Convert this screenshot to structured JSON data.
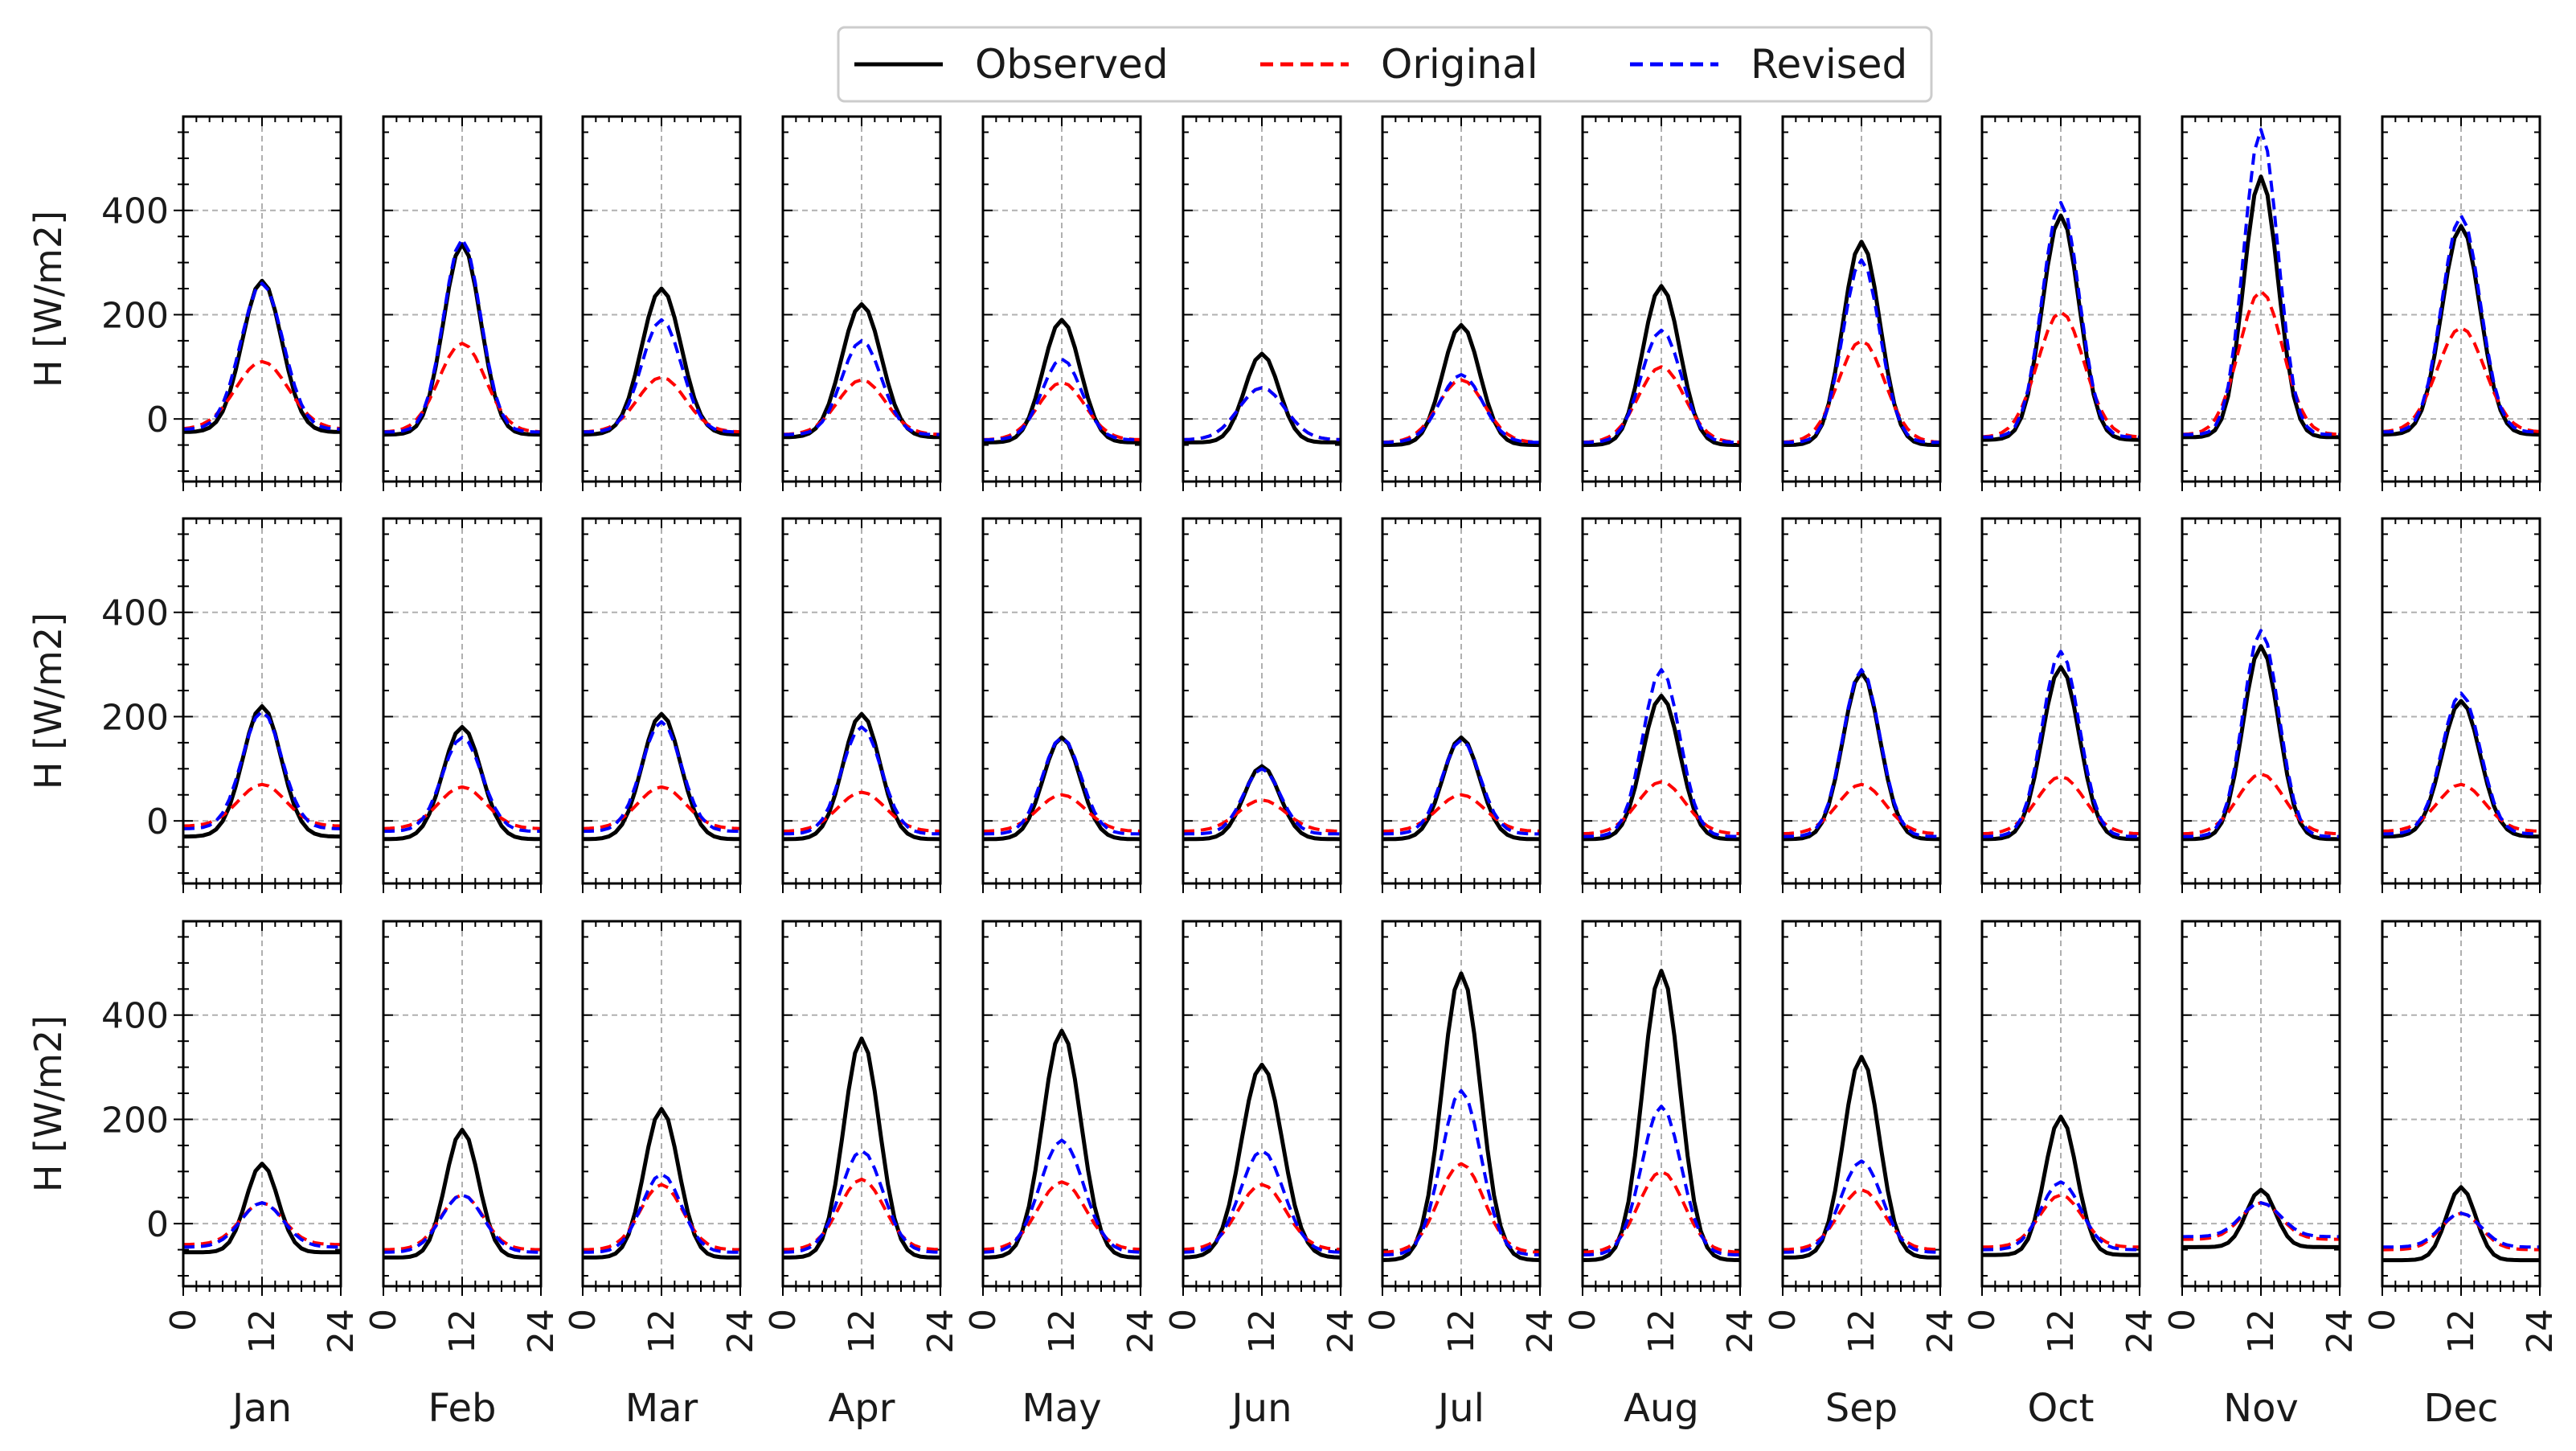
{
  "chart_data": {
    "type": "line",
    "layout": "3 rows x 12 columns of small-multiple line plots",
    "ylabel": "H [W/m2]",
    "xlabel": "",
    "xlim": [
      0,
      24
    ],
    "ylim": [
      -120,
      580
    ],
    "x_ticks": [
      0,
      12,
      24
    ],
    "x_tick_labels": [
      "0",
      "12",
      "24"
    ],
    "y_ticks": [
      0,
      200,
      400
    ],
    "y_tick_labels": [
      "0",
      "200",
      "400"
    ],
    "grid": true,
    "months": [
      "Jan",
      "Feb",
      "Mar",
      "Apr",
      "May",
      "Jun",
      "Jul",
      "Aug",
      "Sep",
      "Oct",
      "Nov",
      "Dec"
    ],
    "series_meta": [
      {
        "key": "obs",
        "name": "Observed",
        "color": "#000000",
        "style": "solid"
      },
      {
        "key": "orig",
        "name": "Original",
        "color": "#ff0000",
        "style": "dashed"
      },
      {
        "key": "rev",
        "name": "Revised",
        "color": "#0000ff",
        "style": "dashed"
      }
    ],
    "legend": {
      "placement": "top-center",
      "entries": [
        "Observed",
        "Original",
        "Revised"
      ]
    },
    "panel_params": [
      [
        {
          "obs": [
            -25,
            265,
            3.0
          ],
          "orig": [
            -20,
            110,
            4.0
          ],
          "rev": [
            -20,
            260,
            3.2
          ]
        },
        {
          "obs": [
            -30,
            335,
            2.8
          ],
          "orig": [
            -25,
            145,
            3.5
          ],
          "rev": [
            -25,
            345,
            2.8
          ]
        },
        {
          "obs": [
            -30,
            250,
            3.0
          ],
          "orig": [
            -25,
            80,
            3.6
          ],
          "rev": [
            -25,
            190,
            3.0
          ]
        },
        {
          "obs": [
            -35,
            220,
            3.0
          ],
          "orig": [
            -30,
            75,
            3.6
          ],
          "rev": [
            -30,
            150,
            3.0
          ]
        },
        {
          "obs": [
            -45,
            190,
            2.8
          ],
          "orig": [
            -40,
            70,
            3.5
          ],
          "rev": [
            -40,
            115,
            3.0
          ]
        },
        {
          "obs": [
            -45,
            125,
            2.6
          ],
          "orig": [
            -40,
            60,
            3.5
          ],
          "rev": [
            -40,
            60,
            3.5
          ]
        },
        {
          "obs": [
            -50,
            180,
            2.8
          ],
          "orig": [
            -45,
            75,
            3.5
          ],
          "rev": [
            -45,
            85,
            3.2
          ]
        },
        {
          "obs": [
            -50,
            255,
            2.8
          ],
          "orig": [
            -45,
            100,
            3.5
          ],
          "rev": [
            -45,
            170,
            3.0
          ]
        },
        {
          "obs": [
            -50,
            340,
            2.8
          ],
          "orig": [
            -45,
            150,
            3.5
          ],
          "rev": [
            -45,
            305,
            2.8
          ]
        },
        {
          "obs": [
            -40,
            390,
            2.8
          ],
          "orig": [
            -35,
            205,
            3.5
          ],
          "rev": [
            -35,
            415,
            2.8
          ]
        },
        {
          "obs": [
            -35,
            465,
            2.6
          ],
          "orig": [
            -30,
            245,
            3.3
          ],
          "rev": [
            -30,
            555,
            2.6
          ]
        },
        {
          "obs": [
            -30,
            370,
            2.9
          ],
          "orig": [
            -25,
            175,
            3.6
          ],
          "rev": [
            -25,
            390,
            2.9
          ]
        }
      ],
      [
        {
          "obs": [
            -30,
            220,
            2.9
          ],
          "orig": [
            -10,
            70,
            3.6
          ],
          "rev": [
            -15,
            210,
            3.0
          ]
        },
        {
          "obs": [
            -35,
            180,
            2.9
          ],
          "orig": [
            -15,
            65,
            3.6
          ],
          "rev": [
            -20,
            160,
            3.0
          ]
        },
        {
          "obs": [
            -35,
            205,
            2.9
          ],
          "orig": [
            -15,
            65,
            3.6
          ],
          "rev": [
            -20,
            190,
            3.0
          ]
        },
        {
          "obs": [
            -35,
            205,
            2.8
          ],
          "orig": [
            -20,
            55,
            3.6
          ],
          "rev": [
            -25,
            180,
            3.0
          ]
        },
        {
          "obs": [
            -35,
            160,
            2.8
          ],
          "orig": [
            -20,
            50,
            3.6
          ],
          "rev": [
            -25,
            160,
            2.9
          ]
        },
        {
          "obs": [
            -35,
            105,
            2.7
          ],
          "orig": [
            -20,
            40,
            3.6
          ],
          "rev": [
            -25,
            100,
            2.8
          ]
        },
        {
          "obs": [
            -35,
            160,
            2.8
          ],
          "orig": [
            -20,
            50,
            3.6
          ],
          "rev": [
            -25,
            155,
            2.9
          ]
        },
        {
          "obs": [
            -35,
            240,
            2.8
          ],
          "orig": [
            -25,
            75,
            3.6
          ],
          "rev": [
            -30,
            290,
            2.8
          ]
        },
        {
          "obs": [
            -35,
            285,
            2.8
          ],
          "orig": [
            -25,
            70,
            3.6
          ],
          "rev": [
            -30,
            290,
            2.8
          ]
        },
        {
          "obs": [
            -35,
            295,
            2.8
          ],
          "orig": [
            -25,
            85,
            3.6
          ],
          "rev": [
            -30,
            325,
            2.8
          ]
        },
        {
          "obs": [
            -35,
            335,
            2.7
          ],
          "orig": [
            -25,
            90,
            3.5
          ],
          "rev": [
            -30,
            365,
            2.7
          ]
        },
        {
          "obs": [
            -30,
            230,
            2.9
          ],
          "orig": [
            -20,
            70,
            3.6
          ],
          "rev": [
            -25,
            245,
            2.9
          ]
        }
      ],
      [
        {
          "obs": [
            -55,
            115,
            2.4
          ],
          "orig": [
            -40,
            40,
            3.2
          ],
          "rev": [
            -45,
            40,
            3.2
          ]
        },
        {
          "obs": [
            -65,
            180,
            2.5
          ],
          "orig": [
            -50,
            55,
            3.2
          ],
          "rev": [
            -55,
            55,
            3.2
          ]
        },
        {
          "obs": [
            -65,
            220,
            2.6
          ],
          "orig": [
            -50,
            75,
            3.2
          ],
          "rev": [
            -55,
            95,
            3.0
          ]
        },
        {
          "obs": [
            -65,
            355,
            2.7
          ],
          "orig": [
            -50,
            85,
            3.4
          ],
          "rev": [
            -55,
            140,
            3.2
          ]
        },
        {
          "obs": [
            -65,
            370,
            2.9
          ],
          "orig": [
            -50,
            80,
            3.6
          ],
          "rev": [
            -55,
            160,
            3.3
          ]
        },
        {
          "obs": [
            -65,
            305,
            3.1
          ],
          "orig": [
            -50,
            75,
            3.6
          ],
          "rev": [
            -55,
            140,
            3.3
          ]
        },
        {
          "obs": [
            -70,
            480,
            2.9
          ],
          "orig": [
            -55,
            115,
            3.4
          ],
          "rev": [
            -60,
            255,
            3.0
          ]
        },
        {
          "obs": [
            -70,
            485,
            2.8
          ],
          "orig": [
            -55,
            100,
            3.4
          ],
          "rev": [
            -60,
            225,
            3.0
          ]
        },
        {
          "obs": [
            -65,
            320,
            2.7
          ],
          "orig": [
            -50,
            65,
            3.4
          ],
          "rev": [
            -55,
            120,
            3.1
          ]
        },
        {
          "obs": [
            -60,
            205,
            2.4
          ],
          "orig": [
            -45,
            55,
            3.2
          ],
          "rev": [
            -50,
            80,
            3.0
          ]
        },
        {
          "obs": [
            -45,
            65,
            2.2
          ],
          "orig": [
            -30,
            40,
            3.0
          ],
          "rev": [
            -25,
            40,
            3.0
          ]
        },
        {
          "obs": [
            -70,
            70,
            2.2
          ],
          "orig": [
            -50,
            20,
            3.0
          ],
          "rev": [
            -45,
            20,
            3.0
          ]
        }
      ]
    ]
  }
}
